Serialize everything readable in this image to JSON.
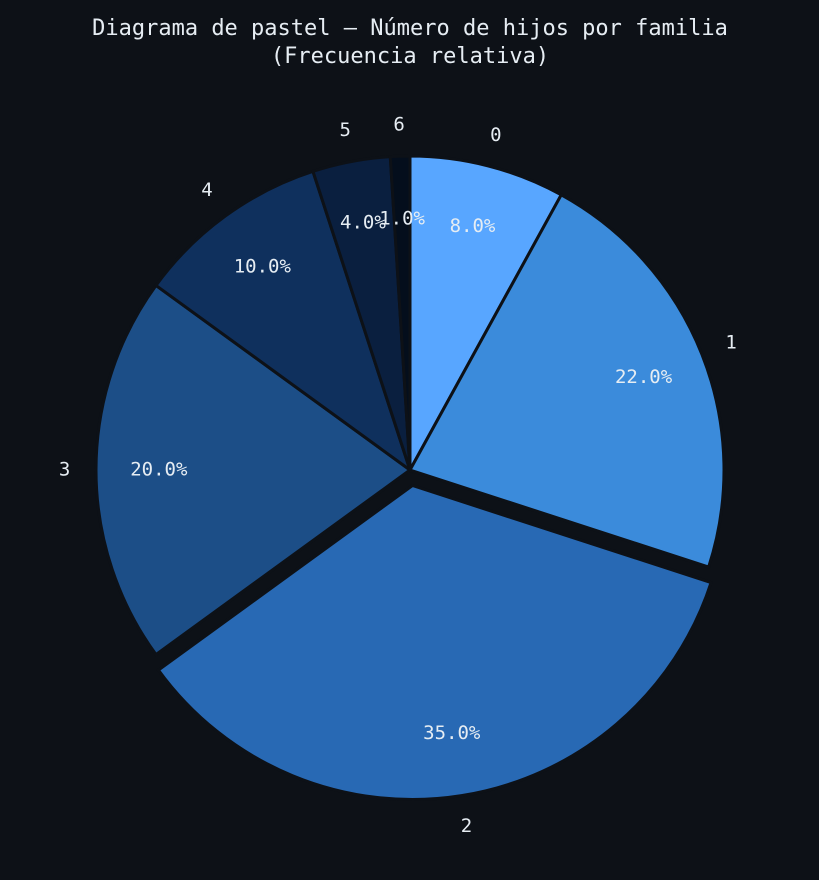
{
  "chart_data": {
    "type": "pie",
    "title": "Diagrama de pastel — Número de hijos por familia",
    "subtitle": "(Frecuencia relativa)",
    "categories": [
      "0",
      "1",
      "2",
      "3",
      "4",
      "5",
      "6"
    ],
    "values": [
      8.0,
      22.0,
      35.0,
      20.0,
      10.0,
      4.0,
      1.0
    ],
    "labels_pct": [
      "8.0%",
      "22.0%",
      "35.0%",
      "20.0%",
      "10.0%",
      "4.0%",
      "1.0%"
    ],
    "colors": [
      "#58a6ff",
      "#3b8bdb",
      "#2869b4",
      "#1c4e87",
      "#0f305d",
      "#0a1f3f",
      "#040e1c"
    ],
    "explode": [
      0,
      0,
      0.05,
      0,
      0,
      0,
      0
    ],
    "start_angle": 90,
    "direction": "clockwise",
    "background": "#0d1117",
    "edge_color": "#0d1117"
  }
}
